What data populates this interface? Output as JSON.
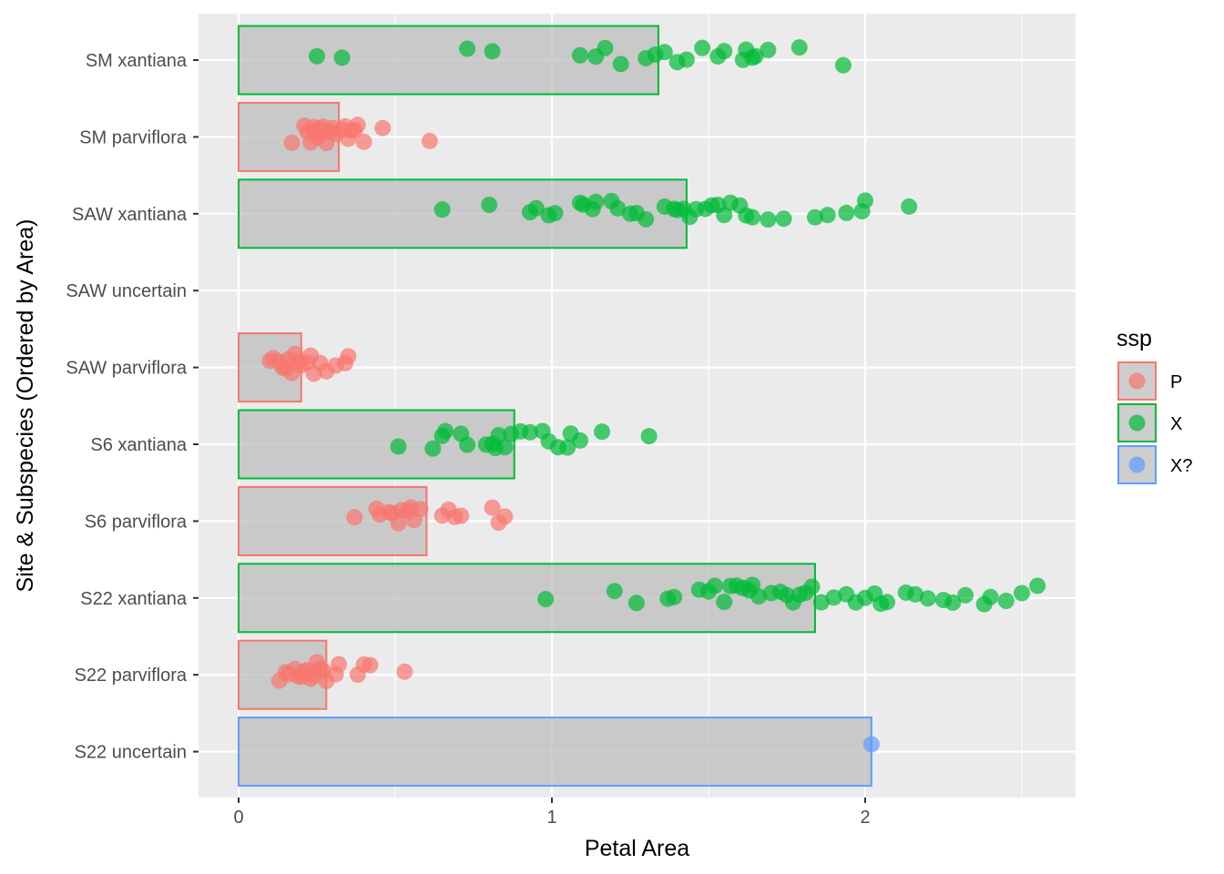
{
  "chart_data": {
    "type": "bar",
    "orientation": "horizontal",
    "xlabel": "Petal Area",
    "ylabel": "Site & Subspecies (Ordered by Area)",
    "xlim": [
      -0.13,
      2.55
    ],
    "xticks": [
      0,
      1,
      2
    ],
    "xtick_labels": [
      "0",
      "1",
      "2"
    ],
    "grid": true,
    "legend": {
      "title": "ssp",
      "placement": "right",
      "entries": [
        {
          "key": "P",
          "label": "P",
          "color": "#F8766D"
        },
        {
          "key": "X",
          "label": "X",
          "color": "#00BA38"
        },
        {
          "key": "X?",
          "label": "X?",
          "color": "#619CFF"
        }
      ]
    },
    "categories": [
      {
        "label": "SM xantiana",
        "ssp": "X",
        "bar": 1.34,
        "points": [
          0.25,
          0.33,
          0.73,
          0.81,
          1.09,
          1.14,
          1.17,
          1.22,
          1.3,
          1.33,
          1.36,
          1.4,
          1.43,
          1.48,
          1.53,
          1.55,
          1.61,
          1.62,
          1.64,
          1.65,
          1.69,
          1.79,
          1.93
        ]
      },
      {
        "label": "SM parviflora",
        "ssp": "P",
        "bar": 0.32,
        "points": [
          0.17,
          0.21,
          0.22,
          0.23,
          0.24,
          0.24,
          0.25,
          0.25,
          0.26,
          0.27,
          0.28,
          0.29,
          0.3,
          0.31,
          0.33,
          0.34,
          0.35,
          0.36,
          0.37,
          0.38,
          0.4,
          0.46,
          0.61
        ]
      },
      {
        "label": "SAW xantiana",
        "ssp": "X",
        "bar": 1.43,
        "points": [
          0.65,
          0.8,
          0.93,
          0.95,
          0.99,
          1.01,
          1.09,
          1.1,
          1.13,
          1.14,
          1.19,
          1.21,
          1.25,
          1.27,
          1.3,
          1.36,
          1.39,
          1.4,
          1.42,
          1.44,
          1.46,
          1.49,
          1.51,
          1.53,
          1.55,
          1.57,
          1.6,
          1.62,
          1.64,
          1.69,
          1.74,
          1.84,
          1.88,
          1.94,
          1.99,
          2.0,
          2.14
        ]
      },
      {
        "label": "SAW uncertain",
        "ssp": "X?",
        "bar": null,
        "points": []
      },
      {
        "label": "SAW parviflora",
        "ssp": "P",
        "bar": 0.2,
        "points": [
          0.1,
          0.11,
          0.13,
          0.14,
          0.15,
          0.16,
          0.17,
          0.18,
          0.19,
          0.2,
          0.22,
          0.23,
          0.24,
          0.26,
          0.28,
          0.31,
          0.34,
          0.35
        ]
      },
      {
        "label": "S6 xantiana",
        "ssp": "X",
        "bar": 0.88,
        "points": [
          0.51,
          0.62,
          0.65,
          0.66,
          0.71,
          0.73,
          0.79,
          0.81,
          0.82,
          0.83,
          0.85,
          0.87,
          0.9,
          0.93,
          0.97,
          0.99,
          1.02,
          1.05,
          1.06,
          1.09,
          1.16,
          1.31
        ]
      },
      {
        "label": "S6 parviflora",
        "ssp": "P",
        "bar": 0.6,
        "points": [
          0.37,
          0.44,
          0.45,
          0.48,
          0.49,
          0.51,
          0.52,
          0.54,
          0.55,
          0.56,
          0.58,
          0.65,
          0.67,
          0.69,
          0.71,
          0.81,
          0.83,
          0.85
        ]
      },
      {
        "label": "S22 xantiana",
        "ssp": "X",
        "bar": 1.84,
        "points": [
          0.98,
          1.2,
          1.27,
          1.37,
          1.39,
          1.47,
          1.5,
          1.52,
          1.55,
          1.57,
          1.59,
          1.61,
          1.63,
          1.64,
          1.66,
          1.7,
          1.73,
          1.75,
          1.77,
          1.79,
          1.81,
          1.83,
          1.86,
          1.9,
          1.94,
          1.97,
          2.0,
          2.03,
          2.05,
          2.07,
          2.13,
          2.16,
          2.2,
          2.25,
          2.28,
          2.32,
          2.38,
          2.4,
          2.45,
          2.5,
          2.55
        ]
      },
      {
        "label": "S22 parviflora",
        "ssp": "P",
        "bar": 0.28,
        "points": [
          0.13,
          0.15,
          0.16,
          0.18,
          0.19,
          0.2,
          0.21,
          0.22,
          0.23,
          0.24,
          0.25,
          0.26,
          0.27,
          0.28,
          0.31,
          0.32,
          0.38,
          0.4,
          0.42,
          0.53
        ]
      },
      {
        "label": "S22 uncertain",
        "ssp": "X?",
        "bar": 2.02,
        "points": [
          2.02
        ]
      }
    ]
  }
}
